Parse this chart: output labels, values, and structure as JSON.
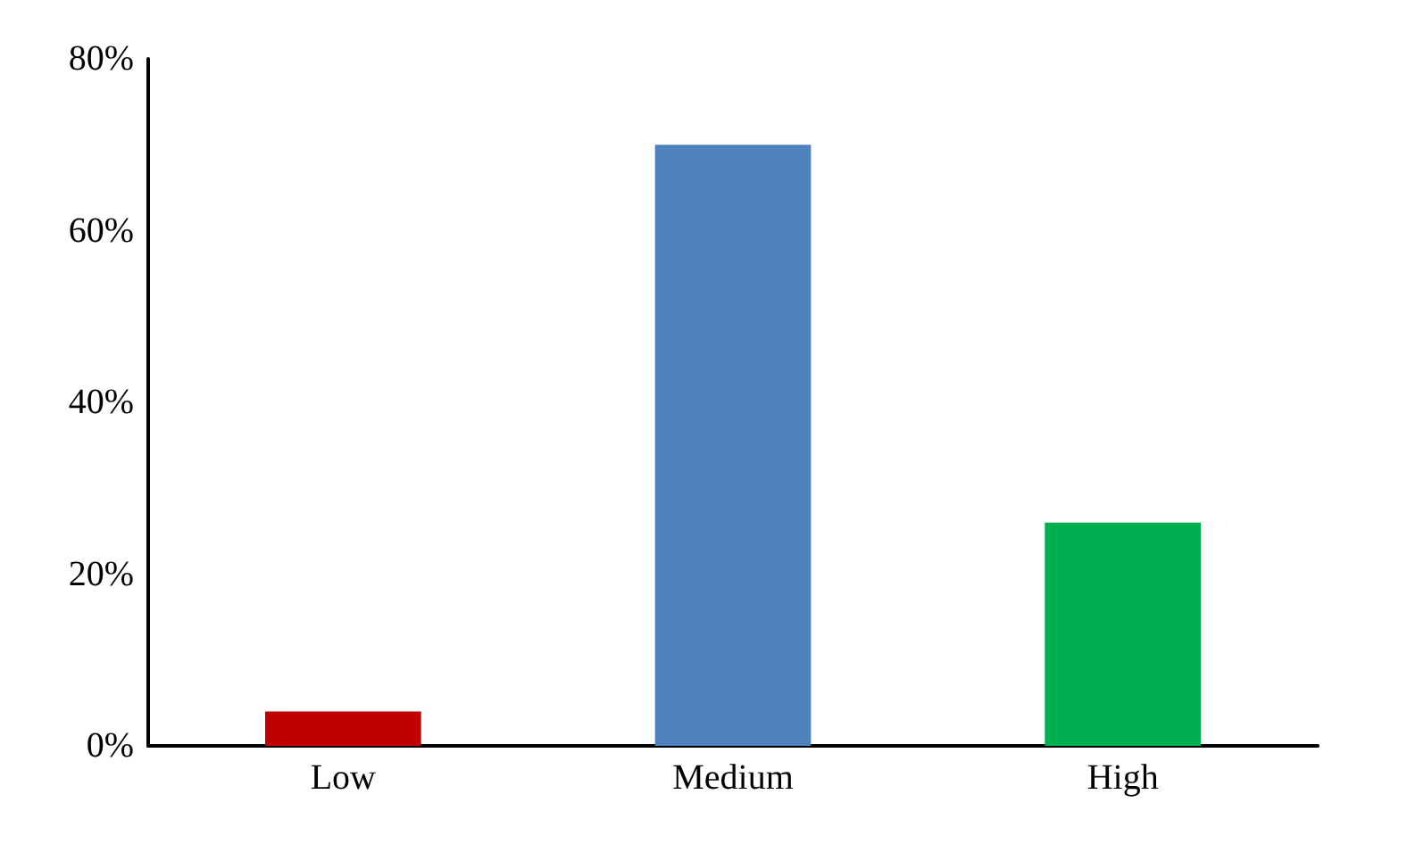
{
  "chart_data": {
    "type": "bar",
    "categories": [
      "Low",
      "Medium",
      "High"
    ],
    "values": [
      4,
      70,
      26
    ],
    "colors": [
      "#c00000",
      "#4f81bd",
      "#00b050"
    ],
    "ylim": [
      0,
      80
    ],
    "yticks": [
      {
        "value": 0,
        "label": "0%"
      },
      {
        "value": 20,
        "label": "20%"
      },
      {
        "value": 40,
        "label": "40%"
      },
      {
        "value": 60,
        "label": "60%"
      },
      {
        "value": 80,
        "label": "80%"
      }
    ],
    "grid": false
  }
}
